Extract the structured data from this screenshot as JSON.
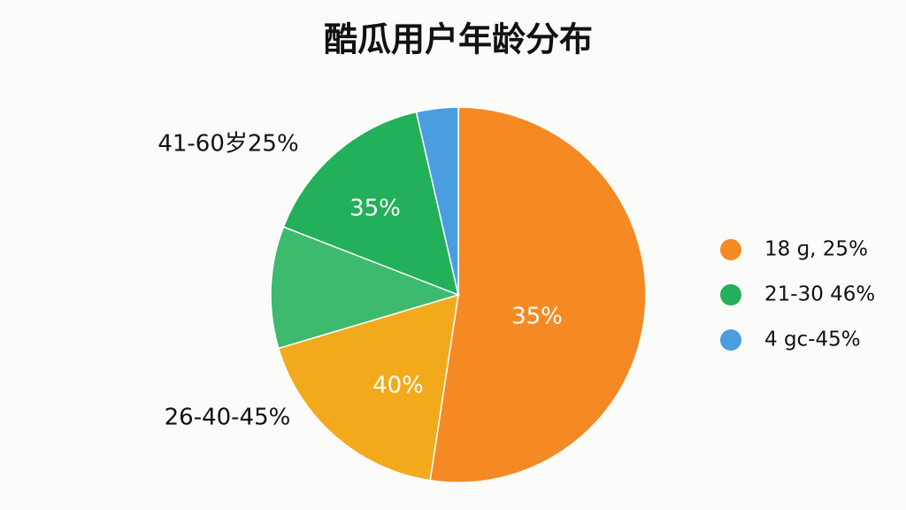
{
  "chart_data": {
    "type": "pie",
    "title": "酷瓜用户年龄分布",
    "values": [
      52.4,
      18,
      10.5,
      15.5,
      3.6
    ],
    "colors": [
      "#f58a24",
      "#f2aa1c",
      "#3dba6e",
      "#22b05a",
      "#4a9ee0"
    ],
    "annotations": [
      "35%",
      "40%",
      "35%",
      "41-60岁25%",
      "26-40-45%"
    ],
    "legend": [
      {
        "label": "18 ɡ, 25%",
        "color": "#f58a24"
      },
      {
        "label": "21-30  46%",
        "color": "#22b05a"
      },
      {
        "label": "4 gc-45%",
        "color": "#4a9ee0"
      }
    ]
  }
}
